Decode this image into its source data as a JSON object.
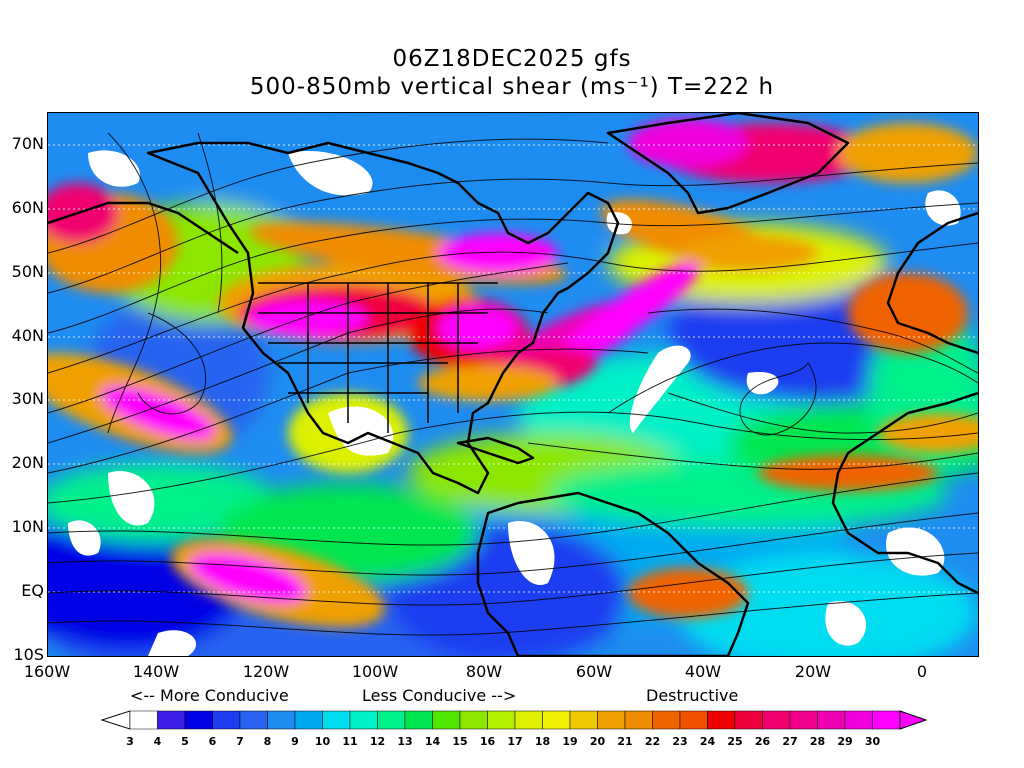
{
  "header": {
    "title_line1": "06Z18DEC2025 gfs",
    "title_line2": "500-850mb vertical shear (ms⁻¹) T=222 h"
  },
  "map": {
    "lat_labels": [
      "70N",
      "60N",
      "50N",
      "40N",
      "30N",
      "20N",
      "10N",
      "EQ",
      "10S"
    ],
    "lon_labels": [
      "160W",
      "140W",
      "120W",
      "100W",
      "80W",
      "60W",
      "40W",
      "20W",
      "0"
    ],
    "lat_range": [
      -10,
      75
    ],
    "lon_range": [
      -160,
      10
    ],
    "grid": true
  },
  "legend": {
    "more_conducive": "<-- More Conducive",
    "less_conducive": "Less Conducive -->",
    "destructive": "Destructive",
    "levels": [
      "3",
      "4",
      "5",
      "6",
      "7",
      "8",
      "9",
      "10",
      "11",
      "12",
      "13",
      "14",
      "15",
      "16",
      "17",
      "18",
      "19",
      "20",
      "21",
      "22",
      "23",
      "24",
      "25",
      "26",
      "27",
      "28",
      "29",
      "30"
    ],
    "colors": [
      "#ffffff",
      "#3c1ee6",
      "#0000e6",
      "#1e3cf0",
      "#2864f0",
      "#1e8cf0",
      "#00aaf0",
      "#00dcf0",
      "#00f0c8",
      "#00f08c",
      "#00e650",
      "#50e600",
      "#8ce600",
      "#b4f000",
      "#dcf000",
      "#f0f000",
      "#f0c800",
      "#f0a000",
      "#f08c00",
      "#f06400",
      "#f05000",
      "#f00000",
      "#f0003c",
      "#f0006e",
      "#f0008c",
      "#f000b4",
      "#f000dc",
      "#ff00ff"
    ],
    "ticks": [
      "3",
      "4",
      "5",
      "6",
      "7",
      "8",
      "9",
      "10",
      "11",
      "12",
      "13",
      "14",
      "15",
      "16",
      "17",
      "18",
      "19",
      "20",
      "21",
      "22",
      "23",
      "24",
      "25",
      "26",
      "27",
      "28",
      "29",
      "30"
    ]
  }
}
